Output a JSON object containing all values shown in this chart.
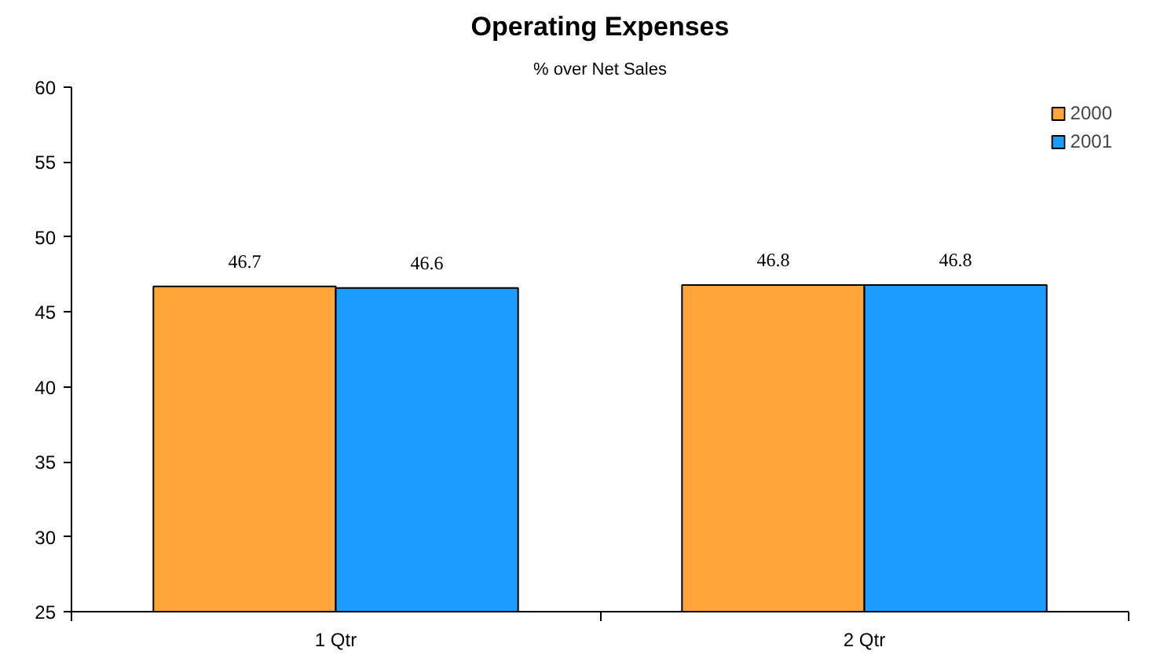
{
  "chart_data": {
    "type": "bar",
    "title": "Operating Expenses",
    "subtitle": "% over Net Sales",
    "categories": [
      "1 Qtr",
      "2 Qtr"
    ],
    "series": [
      {
        "name": "2000",
        "color": "#ffa53a",
        "values": [
          46.7,
          46.8
        ]
      },
      {
        "name": "2001",
        "color": "#1c9cff",
        "values": [
          46.6,
          46.8
        ]
      }
    ],
    "ylim": [
      25,
      60
    ],
    "yticks": [
      25,
      30,
      35,
      40,
      45,
      50,
      55,
      60
    ],
    "grid": false,
    "legend": "top right",
    "data_labels": true
  }
}
